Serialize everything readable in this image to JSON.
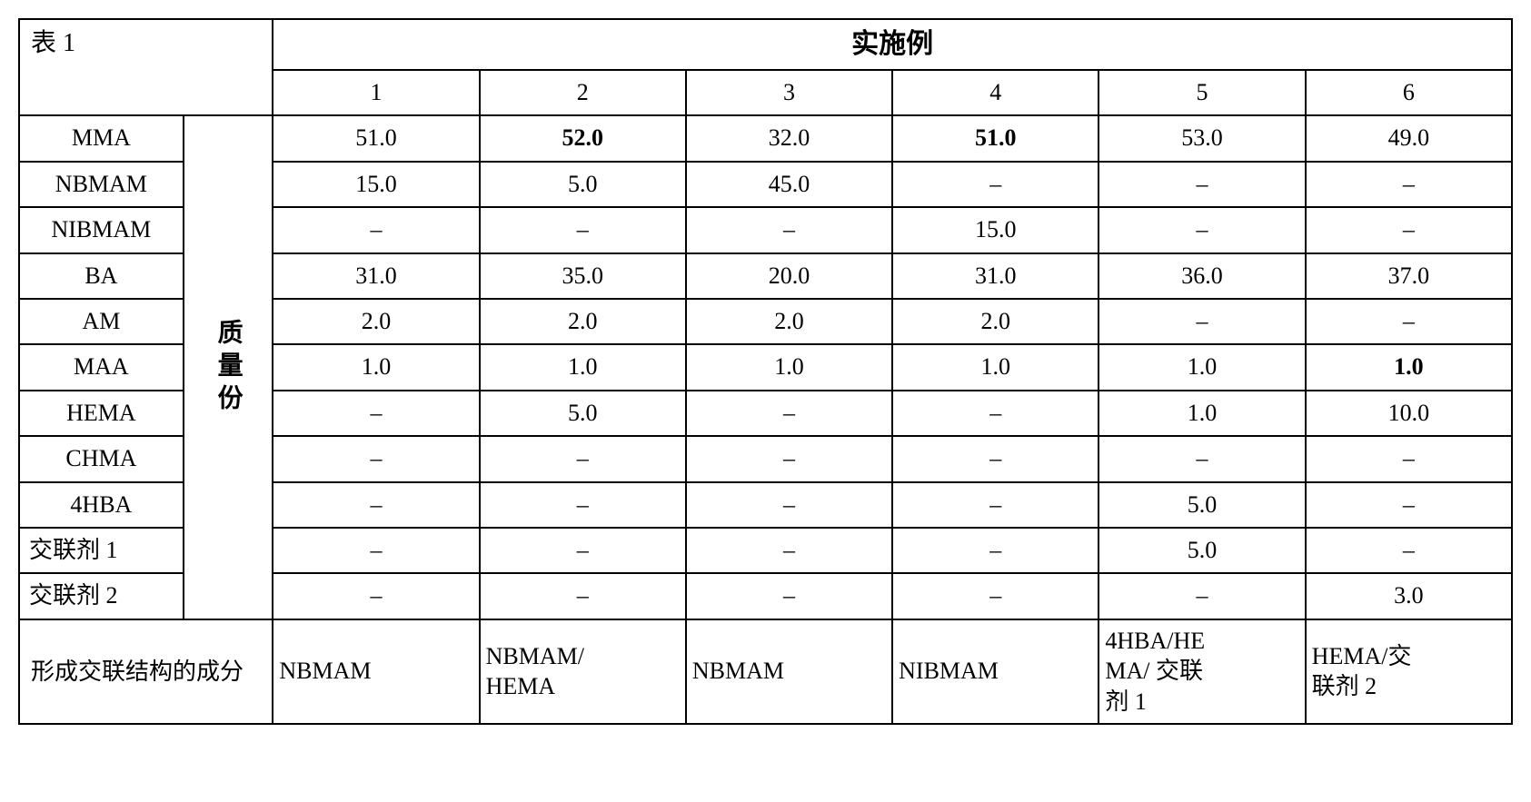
{
  "title": "表 1",
  "header_main": "实施例",
  "col_headers": [
    "1",
    "2",
    "3",
    "4",
    "5",
    "6"
  ],
  "group_label": "质量份",
  "row_labels": [
    "MMA",
    "NBMAM",
    "NIBMAM",
    "BA",
    "AM",
    "MAA",
    "HEMA",
    "CHMA",
    "4HBA",
    "交联剂 1",
    "交联剂 2"
  ],
  "rows": [
    [
      "51.0",
      "52.0",
      "32.0",
      "51.0",
      "53.0",
      "49.0"
    ],
    [
      "15.0",
      "5.0",
      "45.0",
      "–",
      "–",
      "–"
    ],
    [
      "–",
      "–",
      "–",
      "15.0",
      "–",
      "–"
    ],
    [
      "31.0",
      "35.0",
      "20.0",
      "31.0",
      "36.0",
      "37.0"
    ],
    [
      "2.0",
      "2.0",
      "2.0",
      "2.0",
      "–",
      "–"
    ],
    [
      "1.0",
      "1.0",
      "1.0",
      "1.0",
      "1.0",
      "1.0"
    ],
    [
      "–",
      "5.0",
      "–",
      "–",
      "1.0",
      "10.0"
    ],
    [
      "–",
      "–",
      "–",
      "–",
      "–",
      "–"
    ],
    [
      "–",
      "–",
      "–",
      "–",
      "5.0",
      "–"
    ],
    [
      "–",
      "–",
      "–",
      "–",
      "5.0",
      "–"
    ],
    [
      "–",
      "–",
      "–",
      "–",
      "–",
      "3.0"
    ]
  ],
  "bold_cells": [
    [
      0,
      1
    ],
    [
      0,
      3
    ],
    [
      5,
      5
    ]
  ],
  "footer_label": "形成交联结构的成分",
  "footer_values": [
    "NBMAM",
    "NBMAM/\nHEMA",
    "NBMAM",
    "NIBMAM",
    "4HBA/HE\nMA/ 交联\n剂 1",
    "HEMA/交\n联剂 2"
  ]
}
